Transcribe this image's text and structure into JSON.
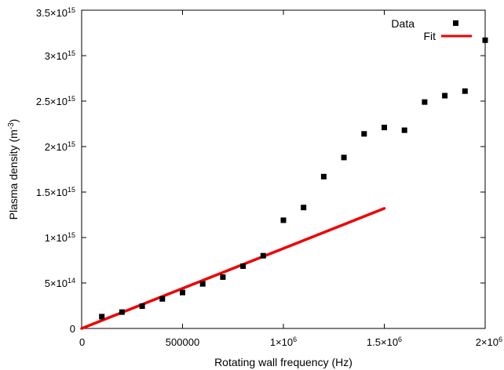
{
  "chart_data": {
    "type": "scatter",
    "xlabel": "Rotating wall frequency (Hz)",
    "ylabel": "Plasma density (m-3)",
    "ylabel_parts": {
      "main": "Plasma density (m",
      "exp": "-3",
      "close": ")"
    },
    "xlim": [
      0,
      2000000
    ],
    "ylim": [
      0,
      3500000000000000
    ],
    "x_ticks": [
      {
        "value": 0,
        "text": "0"
      },
      {
        "value": 500000,
        "text": "500000"
      },
      {
        "value": 1000000,
        "text": "1×10",
        "exp": "6"
      },
      {
        "value": 1500000,
        "text": "1.5×10",
        "exp": "6"
      },
      {
        "value": 2000000,
        "text": "2×10",
        "exp": "6"
      }
    ],
    "y_ticks": [
      {
        "value": 0,
        "text": "0"
      },
      {
        "value": 500000000000000,
        "text": "5×10",
        "exp": "14"
      },
      {
        "value": 1000000000000000,
        "text": "1×10",
        "exp": "15"
      },
      {
        "value": 1500000000000000,
        "text": "1.5×10",
        "exp": "15"
      },
      {
        "value": 2000000000000000,
        "text": "2×10",
        "exp": "15"
      },
      {
        "value": 2500000000000000,
        "text": "2.5×10",
        "exp": "15"
      },
      {
        "value": 3000000000000000,
        "text": "3×10",
        "exp": "15"
      },
      {
        "value": 3500000000000000,
        "text": "3.5×10",
        "exp": "15"
      }
    ],
    "legend": {
      "position": "top-right",
      "entries": [
        "Data",
        "Fit"
      ]
    },
    "series": [
      {
        "name": "Data",
        "kind": "scatter",
        "marker": "square",
        "color": "#000000",
        "points": [
          [
            100000,
            130000000000000
          ],
          [
            200000,
            180000000000000
          ],
          [
            300000,
            245000000000000
          ],
          [
            400000,
            325000000000000
          ],
          [
            500000,
            395000000000000
          ],
          [
            600000,
            490000000000000
          ],
          [
            700000,
            565000000000000
          ],
          [
            800000,
            685000000000000
          ],
          [
            900000,
            800000000000000
          ],
          [
            1000000,
            1190000000000000
          ],
          [
            1100000,
            1330000000000000
          ],
          [
            1200000,
            1670000000000000
          ],
          [
            1300000,
            1880000000000000
          ],
          [
            1400000,
            2140000000000000
          ],
          [
            1500000,
            2210000000000000
          ],
          [
            1600000,
            2180000000000000
          ],
          [
            1700000,
            2490000000000000
          ],
          [
            1800000,
            2560000000000000
          ],
          [
            1900000,
            2610000000000000
          ],
          [
            2000000,
            3170000000000000
          ]
        ]
      },
      {
        "name": "Fit",
        "kind": "line",
        "color": "#ee0000",
        "points": [
          [
            0,
            0
          ],
          [
            1500000,
            1320000000000000
          ]
        ]
      }
    ]
  }
}
